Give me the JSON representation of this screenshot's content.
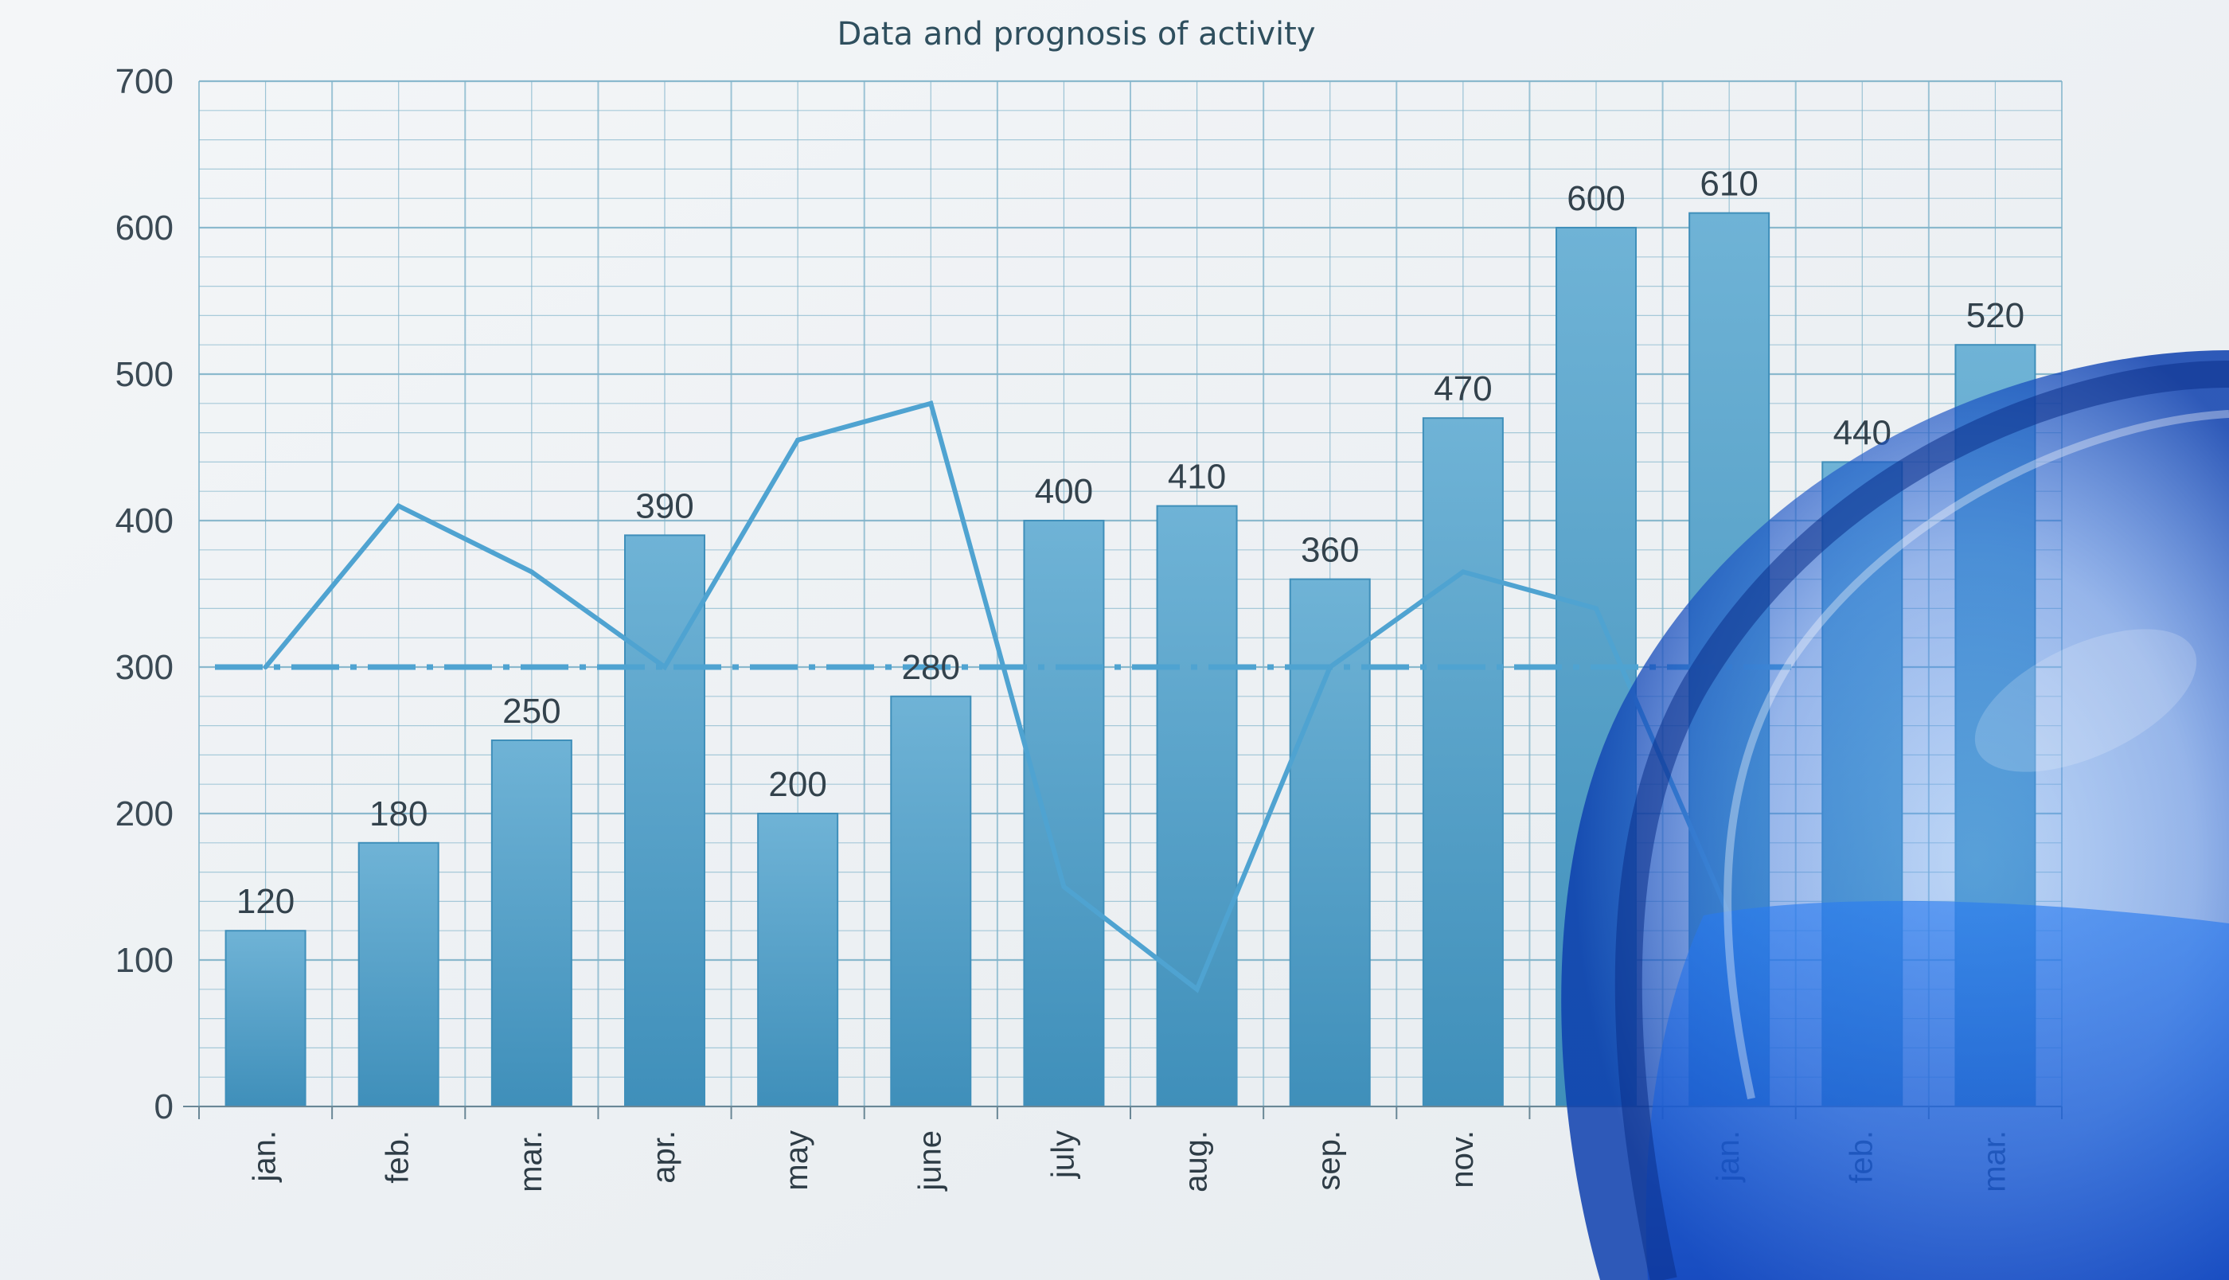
{
  "chart_data": {
    "type": "bar",
    "title": "Data and prognosis of activity",
    "categories": [
      "jan.",
      "feb.",
      "mar.",
      "apr.",
      "may",
      "june",
      "july",
      "aug.",
      "sep.",
      "nov.",
      "",
      "jan.",
      "feb.",
      "mar."
    ],
    "series": [
      {
        "type": "bar",
        "values": [
          120,
          180,
          250,
          390,
          200,
          280,
          400,
          410,
          360,
          470,
          600,
          610,
          440,
          520
        ]
      },
      {
        "type": "line",
        "values": [
          300,
          410,
          365,
          300,
          455,
          480,
          150,
          80,
          300,
          365,
          340,
          130,
          null,
          null
        ]
      },
      {
        "type": "reference-line",
        "style": "dashed",
        "value": 300
      }
    ],
    "data_labels": [
      "120",
      "180",
      "250",
      "390",
      "200",
      "280",
      "400",
      "410",
      "360",
      "470",
      "600",
      "610",
      "440",
      "520"
    ],
    "yticks": [
      "0",
      "100",
      "200",
      "300",
      "400",
      "500",
      "600",
      "700"
    ],
    "ylim": [
      0,
      700
    ],
    "grid": true,
    "colors": {
      "bar": "#5aa6cc",
      "bar_dark": "#3f8fba",
      "line": "#4fa3d1",
      "grid": "#7fb3c9",
      "glass": "#1f5fd8"
    }
  }
}
